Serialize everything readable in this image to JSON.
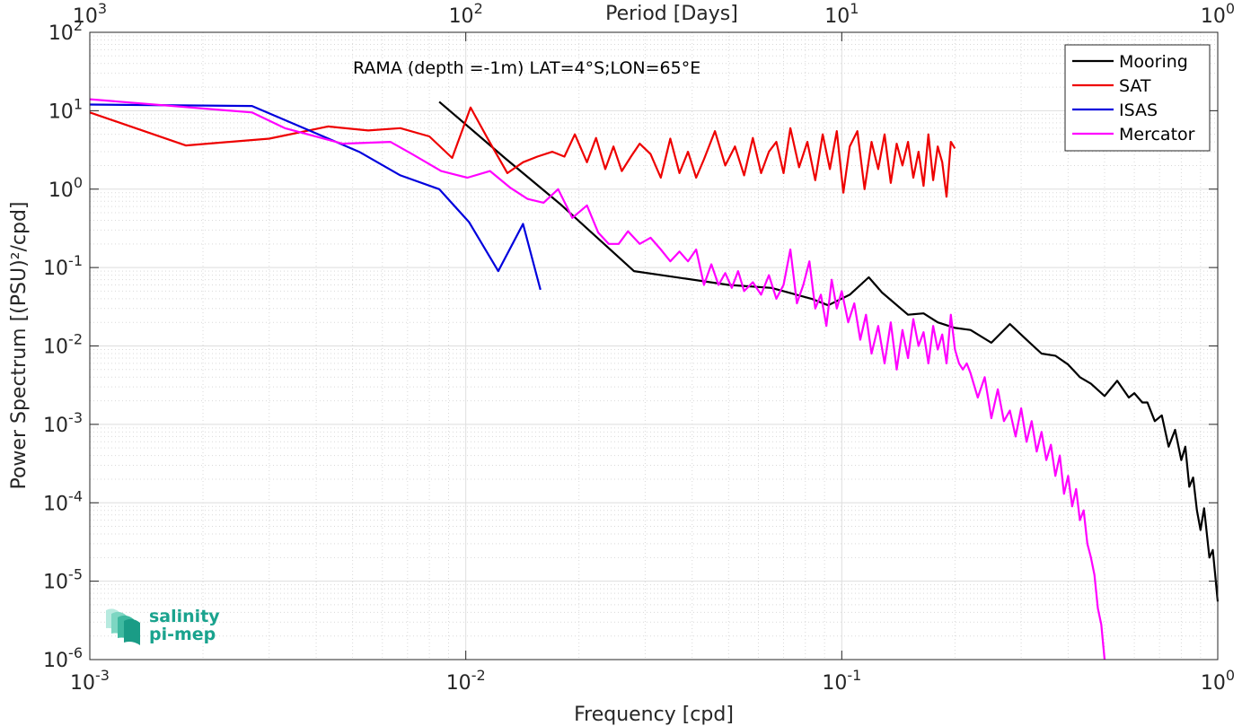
{
  "chart_data": {
    "type": "line",
    "title": "RAMA (depth =-1m) LAT=4°S;LON=65°E",
    "xlabel": "Frequency [cpd]",
    "ylabel": "Power Spectrum [(PSU)²/cpd]",
    "top_xlabel": "Period [Days]",
    "xscale": "log",
    "yscale": "log",
    "xlim": [
      0.001,
      1
    ],
    "ylim": [
      1e-06,
      100
    ],
    "grid": true,
    "legend_position": "top-right",
    "x_ticks": [
      {
        "value": 0.001,
        "base": "10",
        "exp": "-3"
      },
      {
        "value": 0.01,
        "base": "10",
        "exp": "-2"
      },
      {
        "value": 0.1,
        "base": "10",
        "exp": "-1"
      },
      {
        "value": 1,
        "base": "10",
        "exp": "0"
      }
    ],
    "top_ticks": [
      {
        "value": 0.001,
        "base": "10",
        "exp": "3"
      },
      {
        "value": 0.01,
        "base": "10",
        "exp": "2"
      },
      {
        "value": 0.1,
        "base": "10",
        "exp": "1"
      },
      {
        "value": 1,
        "base": "10",
        "exp": "0"
      }
    ],
    "y_ticks": [
      {
        "value": 1e-06,
        "base": "10",
        "exp": "-6"
      },
      {
        "value": 1e-05,
        "base": "10",
        "exp": "-5"
      },
      {
        "value": 0.0001,
        "base": "10",
        "exp": "-4"
      },
      {
        "value": 0.001,
        "base": "10",
        "exp": "-3"
      },
      {
        "value": 0.01,
        "base": "10",
        "exp": "-2"
      },
      {
        "value": 0.1,
        "base": "10",
        "exp": "-1"
      },
      {
        "value": 1,
        "base": "10",
        "exp": "0"
      },
      {
        "value": 10,
        "base": "10",
        "exp": "1"
      },
      {
        "value": 100,
        "base": "10",
        "exp": "2"
      }
    ],
    "series": [
      {
        "name": "Mooring",
        "color": "#000000",
        "x": [
          0.0085,
          0.0127,
          0.0178,
          0.028,
          0.05,
          0.065,
          0.083,
          0.092,
          0.105,
          0.118,
          0.128,
          0.15,
          0.165,
          0.18,
          0.2,
          0.22,
          0.25,
          0.28,
          0.31,
          0.34,
          0.37,
          0.4,
          0.43,
          0.46,
          0.5,
          0.54,
          0.58,
          0.6,
          0.63,
          0.65,
          0.68,
          0.71,
          0.74,
          0.77,
          0.8,
          0.82,
          0.84,
          0.86,
          0.88,
          0.9,
          0.92,
          0.95,
          0.97,
          1.0
        ],
        "y": [
          13,
          2.5,
          0.65,
          0.09,
          0.06,
          0.055,
          0.04,
          0.033,
          0.045,
          0.075,
          0.048,
          0.025,
          0.026,
          0.02,
          0.017,
          0.016,
          0.011,
          0.019,
          0.012,
          0.008,
          0.0075,
          0.0058,
          0.004,
          0.0033,
          0.0023,
          0.0036,
          0.0022,
          0.0025,
          0.0019,
          0.0019,
          0.0011,
          0.0013,
          0.00052,
          0.00085,
          0.00035,
          0.00052,
          0.00016,
          0.00021,
          8e-05,
          4.5e-05,
          8.5e-05,
          2e-05,
          2.5e-05,
          5.5e-06
        ]
      },
      {
        "name": "SAT",
        "color": "#ee0000",
        "x": [
          0.001,
          0.0018,
          0.003,
          0.0043,
          0.0055,
          0.0067,
          0.008,
          0.0092,
          0.0103,
          0.0115,
          0.0129,
          0.0142,
          0.0155,
          0.017,
          0.0183,
          0.0195,
          0.021,
          0.0222,
          0.0235,
          0.0247,
          0.026,
          0.0275,
          0.029,
          0.031,
          0.033,
          0.035,
          0.037,
          0.039,
          0.041,
          0.043,
          0.046,
          0.049,
          0.052,
          0.055,
          0.058,
          0.061,
          0.064,
          0.067,
          0.07,
          0.073,
          0.077,
          0.081,
          0.085,
          0.089,
          0.093,
          0.097,
          0.101,
          0.105,
          0.11,
          0.115,
          0.12,
          0.125,
          0.13,
          0.135,
          0.14,
          0.145,
          0.15,
          0.155,
          0.16,
          0.165,
          0.17,
          0.175,
          0.18,
          0.185,
          0.19,
          0.195,
          0.2
        ],
        "y": [
          9.5,
          3.6,
          4.4,
          6.3,
          5.6,
          6.0,
          4.7,
          2.5,
          11.0,
          4.2,
          1.6,
          2.2,
          2.6,
          3.0,
          2.6,
          5.0,
          2.2,
          4.5,
          1.8,
          3.5,
          1.7,
          2.6,
          3.8,
          2.8,
          1.4,
          4.4,
          1.6,
          3.0,
          1.4,
          2.4,
          5.5,
          2.0,
          3.5,
          1.5,
          4.5,
          1.6,
          3.0,
          4.0,
          1.6,
          6.0,
          1.9,
          4.0,
          1.3,
          5.0,
          1.8,
          5.5,
          0.9,
          3.5,
          5.5,
          1.0,
          4.0,
          1.8,
          5.0,
          1.2,
          3.8,
          2.0,
          4.0,
          1.4,
          3.0,
          1.1,
          5.0,
          1.3,
          3.5,
          2.2,
          0.8,
          4.0,
          3.3
        ]
      },
      {
        "name": "ISAS",
        "color": "#0000dd",
        "x": [
          0.001,
          0.0027,
          0.0052,
          0.0067,
          0.0085,
          0.0102,
          0.0122,
          0.0142,
          0.0158
        ],
        "y": [
          12,
          11.5,
          3.0,
          1.5,
          1.0,
          0.38,
          0.09,
          0.36,
          0.052
        ]
      },
      {
        "name": "Mercator",
        "color": "#ff00ff",
        "x": [
          0.001,
          0.0027,
          0.0033,
          0.0047,
          0.0063,
          0.0072,
          0.0086,
          0.0101,
          0.0116,
          0.0131,
          0.0146,
          0.0161,
          0.0176,
          0.0192,
          0.021,
          0.0225,
          0.024,
          0.0255,
          0.027,
          0.029,
          0.031,
          0.033,
          0.035,
          0.037,
          0.039,
          0.041,
          0.043,
          0.045,
          0.047,
          0.049,
          0.051,
          0.053,
          0.055,
          0.058,
          0.061,
          0.064,
          0.067,
          0.07,
          0.073,
          0.076,
          0.079,
          0.082,
          0.085,
          0.088,
          0.091,
          0.094,
          0.097,
          0.1,
          0.104,
          0.108,
          0.112,
          0.116,
          0.12,
          0.125,
          0.13,
          0.135,
          0.14,
          0.145,
          0.15,
          0.155,
          0.16,
          0.165,
          0.17,
          0.175,
          0.18,
          0.185,
          0.19,
          0.195,
          0.2,
          0.205,
          0.21,
          0.215,
          0.22,
          0.23,
          0.24,
          0.25,
          0.26,
          0.27,
          0.28,
          0.29,
          0.3,
          0.31,
          0.32,
          0.33,
          0.34,
          0.35,
          0.36,
          0.37,
          0.38,
          0.39,
          0.4,
          0.41,
          0.42,
          0.43,
          0.44,
          0.45,
          0.46,
          0.47,
          0.48,
          0.49,
          0.5
        ],
        "y": [
          14,
          9.5,
          6.0,
          3.8,
          4.0,
          2.8,
          1.7,
          1.4,
          1.7,
          1.05,
          0.75,
          0.67,
          1.0,
          0.43,
          0.62,
          0.28,
          0.2,
          0.2,
          0.29,
          0.2,
          0.24,
          0.17,
          0.12,
          0.16,
          0.12,
          0.17,
          0.06,
          0.11,
          0.06,
          0.085,
          0.055,
          0.09,
          0.05,
          0.065,
          0.045,
          0.08,
          0.04,
          0.06,
          0.17,
          0.035,
          0.06,
          0.12,
          0.03,
          0.045,
          0.018,
          0.07,
          0.03,
          0.05,
          0.02,
          0.035,
          0.012,
          0.025,
          0.008,
          0.018,
          0.006,
          0.02,
          0.005,
          0.016,
          0.007,
          0.022,
          0.01,
          0.015,
          0.006,
          0.018,
          0.009,
          0.014,
          0.006,
          0.025,
          0.009,
          0.006,
          0.005,
          0.006,
          0.0045,
          0.0022,
          0.004,
          0.0012,
          0.0028,
          0.0011,
          0.0015,
          0.0007,
          0.0016,
          0.0006,
          0.0011,
          0.00045,
          0.0008,
          0.00035,
          0.00055,
          0.00022,
          0.0004,
          0.00013,
          0.00022,
          9e-05,
          0.00015,
          6e-05,
          8e-05,
          3e-05,
          2e-05,
          1.2e-05,
          4.5e-06,
          2.8e-06,
          1e-06
        ]
      }
    ]
  },
  "logo": {
    "line1": "salinity",
    "line2": "pi-mep"
  }
}
